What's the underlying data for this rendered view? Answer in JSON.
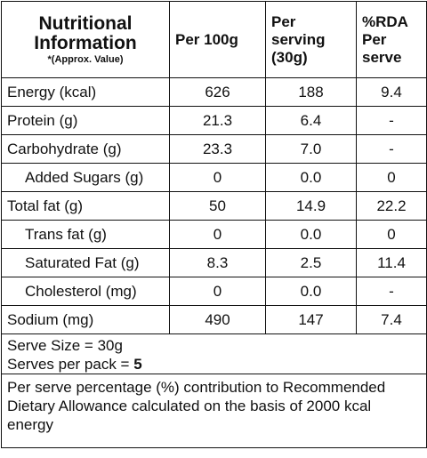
{
  "header": {
    "title_lines": [
      "Nutritional",
      "Information"
    ],
    "note": "*(Approx. Value)",
    "columns": [
      "Per 100g",
      "Per serving (30g)",
      "%RDA Per serve"
    ]
  },
  "table": {
    "rows": [
      {
        "label": "Energy (kcal)",
        "indent": false,
        "values": [
          "626",
          "188",
          "9.4"
        ]
      },
      {
        "label": "Protein (g)",
        "indent": false,
        "values": [
          "21.3",
          "6.4",
          "-"
        ]
      },
      {
        "label": "Carbohydrate (g)",
        "indent": false,
        "values": [
          "23.3",
          "7.0",
          "-"
        ]
      },
      {
        "label": "Added Sugars (g)",
        "indent": true,
        "values": [
          "0",
          "0.0",
          "0"
        ]
      },
      {
        "label": "Total fat (g)",
        "indent": false,
        "values": [
          "50",
          "14.9",
          "22.2"
        ]
      },
      {
        "label": "Trans fat (g)",
        "indent": true,
        "values": [
          "0",
          "0.0",
          "0"
        ]
      },
      {
        "label": "Saturated Fat (g)",
        "indent": true,
        "values": [
          "8.3",
          "2.5",
          "11.4"
        ]
      },
      {
        "label": "Cholesterol (mg)",
        "indent": true,
        "values": [
          "0",
          "0.0",
          "-"
        ]
      },
      {
        "label": "Sodium (mg)",
        "indent": false,
        "values": [
          "490",
          "147",
          "7.4"
        ]
      }
    ]
  },
  "serving": {
    "serve_size": "Serve Size = 30g",
    "serves_per_pack_label": "Serves per pack =",
    "serves_per_pack": "5"
  },
  "footnote": "Per serve percentage (%) contribution to Recommended Dietary Allowance calculated on the basis of 2000 kcal energy"
}
